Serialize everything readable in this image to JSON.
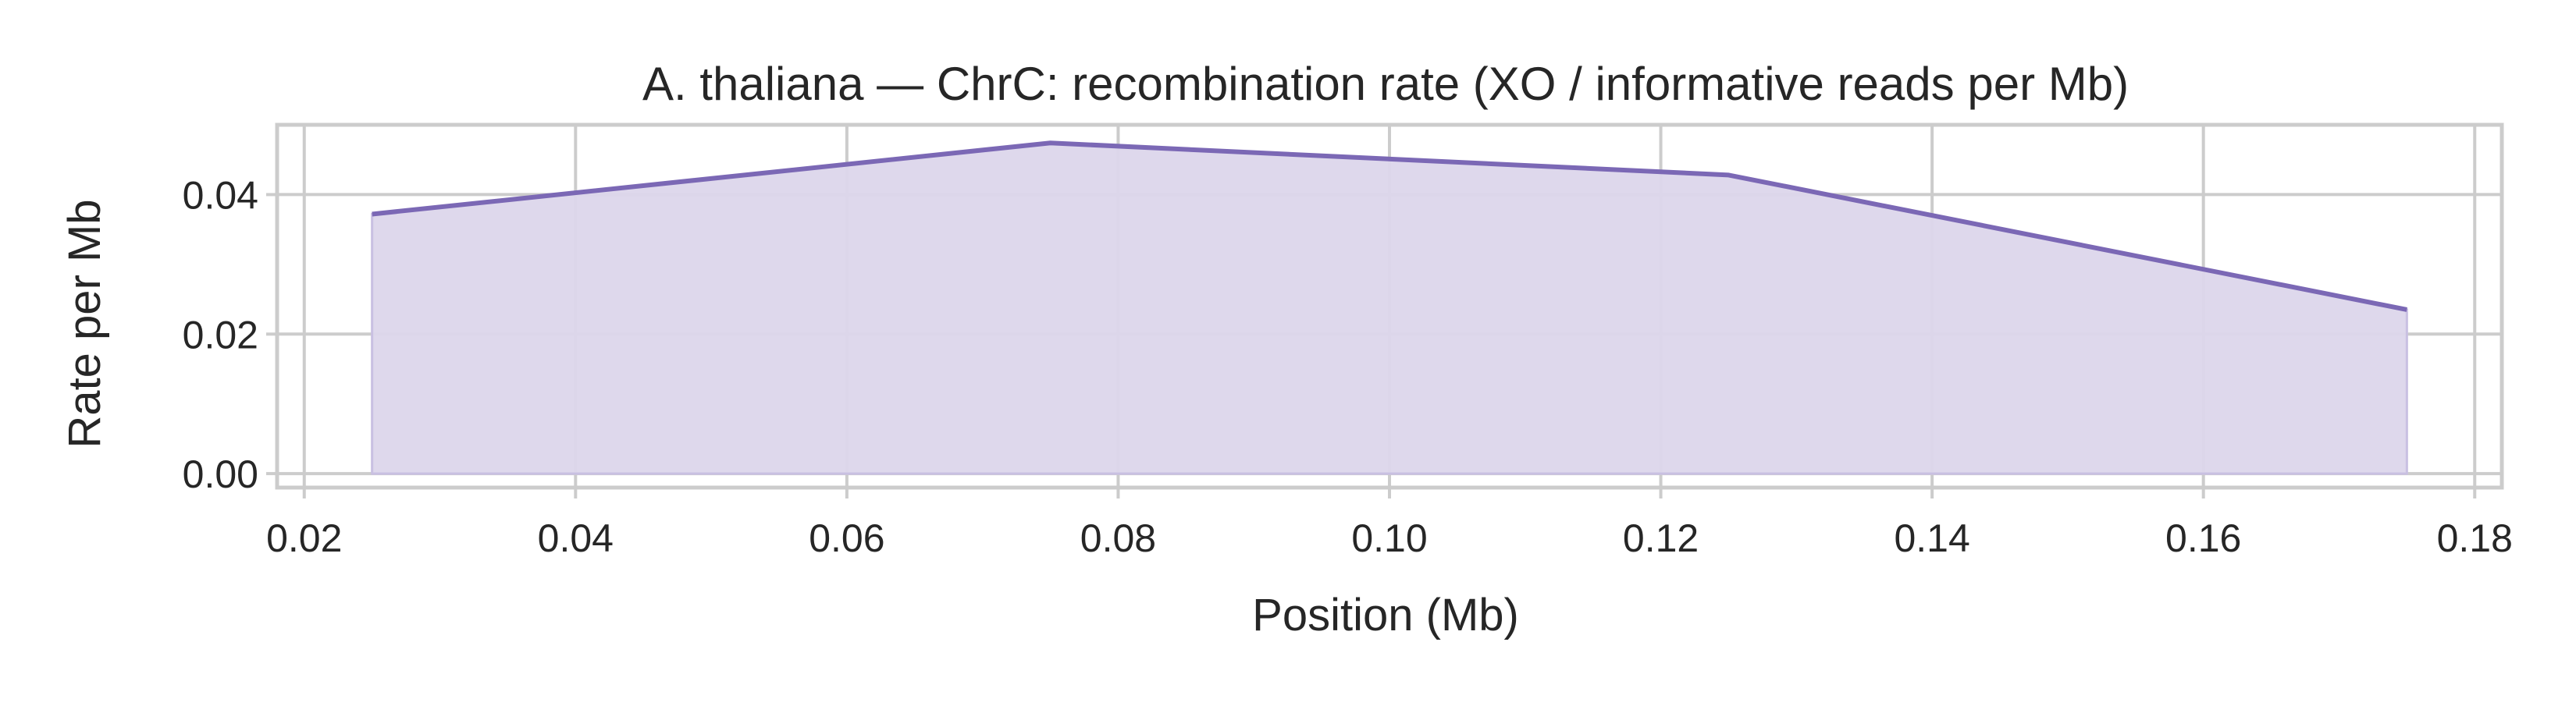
{
  "chart_data": {
    "type": "area",
    "title": "A. thaliana — ChrC: recombination rate (XO / informative reads per Mb)",
    "xlabel": "Position (Mb)",
    "ylabel": "Rate per Mb",
    "xlim": [
      0.018,
      0.182
    ],
    "ylim": [
      -0.002,
      0.05
    ],
    "x_ticks": [
      0.02,
      0.04,
      0.06,
      0.08,
      0.1,
      0.12,
      0.14,
      0.16,
      0.18
    ],
    "x_tick_labels": [
      "0.02",
      "0.04",
      "0.06",
      "0.08",
      "0.10",
      "0.12",
      "0.14",
      "0.16",
      "0.18"
    ],
    "y_ticks": [
      0.0,
      0.02,
      0.04
    ],
    "y_tick_labels": [
      "0.00",
      "0.02",
      "0.04"
    ],
    "grid": true,
    "colors": {
      "line": "#7b68b5",
      "fill": "#dcd6eb",
      "grid": "#cccccc"
    },
    "series": [
      {
        "x": [
          0.025,
          0.075,
          0.125,
          0.175
        ],
        "y": [
          0.0372,
          0.0474,
          0.0428,
          0.0235
        ]
      }
    ]
  }
}
